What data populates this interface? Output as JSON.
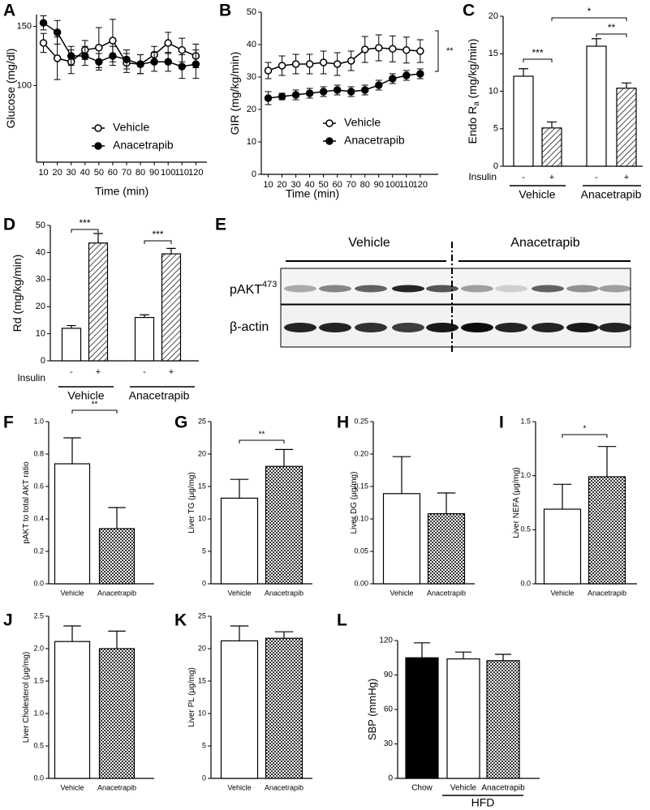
{
  "chart_data": [
    {
      "type": "line",
      "label": "A",
      "ylabel": "Glucose (mg/dl)",
      "xlabel": "Time (min)",
      "x": [
        10,
        20,
        30,
        40,
        50,
        60,
        70,
        80,
        90,
        100,
        110,
        120
      ],
      "xlim": [
        5,
        128
      ],
      "xticks": [
        10,
        20,
        30,
        40,
        50,
        60,
        70,
        80,
        90,
        100,
        110,
        120
      ],
      "ylim": [
        35,
        160
      ],
      "yticks": [
        100,
        150
      ],
      "series": [
        {
          "name": "Vehicle",
          "marker": "open",
          "values": [
            136,
            123,
            120,
            130,
            132,
            138,
            119,
            118,
            126,
            136,
            130,
            125
          ],
          "errors": [
            8,
            18,
            10,
            8,
            17,
            18,
            8,
            8,
            7,
            9,
            10,
            10
          ]
        },
        {
          "name": "Anacetrapib",
          "marker": "filled",
          "values": [
            153,
            145,
            125,
            125,
            120,
            125,
            122,
            118,
            120,
            120,
            116,
            118
          ],
          "errors": [
            6,
            10,
            8,
            8,
            7,
            8,
            8,
            8,
            8,
            8,
            10,
            12
          ]
        }
      ]
    },
    {
      "type": "line",
      "label": "B",
      "ylabel": "GIR (mg/kg/min)",
      "xlabel": "Time (min)",
      "x": [
        10,
        20,
        30,
        40,
        50,
        60,
        70,
        80,
        90,
        100,
        110,
        120
      ],
      "xlim": [
        5,
        133
      ],
      "xticks": [
        10,
        20,
        30,
        40,
        50,
        60,
        70,
        80,
        90,
        100,
        110,
        120
      ],
      "ylim": [
        0,
        50
      ],
      "yticks": [
        0,
        10,
        20,
        30,
        40,
        50
      ],
      "annotations": [
        "**"
      ],
      "series": [
        {
          "name": "Vehicle",
          "marker": "open",
          "values": [
            32,
            33.5,
            34,
            34,
            34.5,
            34,
            35,
            38.5,
            39,
            38.7,
            38.3,
            38
          ],
          "errors": [
            2.5,
            3,
            3,
            3,
            3.5,
            3.5,
            3,
            4,
            4,
            4,
            4,
            3.5
          ]
        },
        {
          "name": "Anacetrapib",
          "marker": "filled",
          "values": [
            23.5,
            24,
            24.5,
            25,
            25.5,
            26,
            25.5,
            26,
            27.5,
            29.5,
            30.5,
            31
          ],
          "errors": [
            2,
            1,
            1.5,
            1.5,
            1.5,
            1.5,
            1.5,
            1.5,
            1.5,
            1.5,
            1.5,
            1.5
          ]
        }
      ]
    },
    {
      "type": "bar",
      "label": "C",
      "ylabel": "Endo R",
      "ylabel_sub": "a",
      "ylabel_unit": " (mg/kg/min)",
      "row_label": "Insulin",
      "categories": [
        "-",
        "+",
        "-",
        "+"
      ],
      "groups": [
        "Vehicle",
        "Anacetrapib"
      ],
      "values": [
        12,
        5.1,
        16,
        10.4
      ],
      "errors": [
        1,
        0.8,
        1,
        0.7
      ],
      "fills": [
        "white",
        "hatch",
        "white",
        "hatch"
      ],
      "ylim": [
        0,
        20
      ],
      "yticks": [
        0,
        5,
        10,
        15,
        20
      ],
      "annotations": [
        "***",
        "**",
        "*"
      ]
    },
    {
      "type": "bar",
      "label": "D",
      "ylabel": "Rd (mg/kg/min)",
      "row_label": "Insulin",
      "categories": [
        "-",
        "+",
        "-",
        "+"
      ],
      "groups": [
        "Vehicle",
        "Anacetrapib"
      ],
      "values": [
        12,
        43.5,
        16,
        39.5
      ],
      "errors": [
        1,
        3.5,
        1,
        2
      ],
      "fills": [
        "white",
        "hatch",
        "white",
        "hatch"
      ],
      "ylim": [
        0,
        50
      ],
      "yticks": [
        0,
        10,
        20,
        30,
        40,
        50
      ],
      "annotations": [
        "***",
        "***"
      ]
    },
    {
      "type": "blot",
      "label": "E",
      "groups": [
        "Vehicle",
        "Anacetrapib"
      ],
      "rows": [
        "pAKT",
        "β-actin"
      ],
      "row_sup": "473"
    },
    {
      "type": "bar",
      "label": "F",
      "ylabel": "pAKT to total AKT ratio",
      "categories": [
        "Vehicle",
        "Anacetrapib"
      ],
      "values": [
        0.74,
        0.34
      ],
      "errors": [
        0.16,
        0.13
      ],
      "fills": [
        "white",
        "check"
      ],
      "ylim": [
        0,
        1
      ],
      "yticks": [
        {
          "value": 0,
          "label": "0.0"
        },
        0.2,
        0.4,
        0.6,
        0.8,
        {
          "value": 1,
          "label": "1.0"
        }
      ],
      "annotations": [
        "**"
      ]
    },
    {
      "type": "bar",
      "label": "G",
      "ylabel": "Liver TG (μg/mg)",
      "categories": [
        "Vehicle",
        "Anacetrapib"
      ],
      "values": [
        13.2,
        18.1
      ],
      "errors": [
        2.9,
        2.6
      ],
      "fills": [
        "white",
        "check"
      ],
      "ylim": [
        0,
        25
      ],
      "yticks": [
        0,
        5,
        10,
        15,
        20,
        25
      ],
      "annotations": [
        "**"
      ]
    },
    {
      "type": "bar",
      "label": "H",
      "ylabel": "Liver DG (μg/mg)",
      "categories": [
        "Vehicle",
        "Anacetrapib"
      ],
      "values": [
        0.139,
        0.108
      ],
      "errors": [
        0.057,
        0.032
      ],
      "fills": [
        "white",
        "check"
      ],
      "ylim": [
        0,
        0.25
      ],
      "yticks": [
        {
          "value": 0,
          "label": "0.00"
        },
        0.05,
        {
          "value": 0.1,
          "label": "0.10"
        },
        0.15,
        {
          "value": 0.2,
          "label": "0.20"
        },
        0.25
      ]
    },
    {
      "type": "bar",
      "label": "I",
      "ylabel": "Liver NEFA (μg/mg)",
      "categories": [
        "Vehicle",
        "Anacetrapib"
      ],
      "values": [
        0.69,
        0.99
      ],
      "errors": [
        0.23,
        0.28
      ],
      "fills": [
        "white",
        "check"
      ],
      "ylim": [
        0,
        1.5
      ],
      "yticks": [
        {
          "value": 0,
          "label": "0.0"
        },
        0.5,
        {
          "value": 1,
          "label": "1.0"
        },
        1.5
      ],
      "annotations": [
        "*"
      ]
    },
    {
      "type": "bar",
      "label": "J",
      "ylabel": "Liver Cholesterol (μg/mg)",
      "categories": [
        "Vehicle",
        "Anacetrapib"
      ],
      "values": [
        2.11,
        2.0
      ],
      "errors": [
        0.24,
        0.27
      ],
      "fills": [
        "white",
        "check"
      ],
      "ylim": [
        0,
        2.5
      ],
      "yticks": [
        {
          "value": 0,
          "label": "0.0"
        },
        0.5,
        {
          "value": 1,
          "label": "1.0"
        },
        1.5,
        {
          "value": 2,
          "label": "2.0"
        },
        2.5
      ]
    },
    {
      "type": "bar",
      "label": "K",
      "ylabel": "Liver PL (μg/mg)",
      "categories": [
        "Vehicle",
        "Anacetrapib"
      ],
      "values": [
        21.2,
        21.6
      ],
      "errors": [
        2.3,
        1.0
      ],
      "fills": [
        "white",
        "check"
      ],
      "ylim": [
        0,
        25
      ],
      "yticks": [
        0,
        5,
        10,
        15,
        20,
        25
      ]
    },
    {
      "type": "bar",
      "label": "L",
      "ylabel": "SBP (mmHg)",
      "categories": [
        "Chow",
        "Vehicle",
        "Anacetrapib"
      ],
      "group": "HFD",
      "values": [
        105,
        104,
        102.5
      ],
      "errors": [
        13,
        6,
        5.5
      ],
      "fills": [
        "black",
        "white",
        "check"
      ],
      "ylim": [
        0,
        120
      ],
      "yticks": [
        0,
        30,
        60,
        90,
        120
      ]
    }
  ]
}
